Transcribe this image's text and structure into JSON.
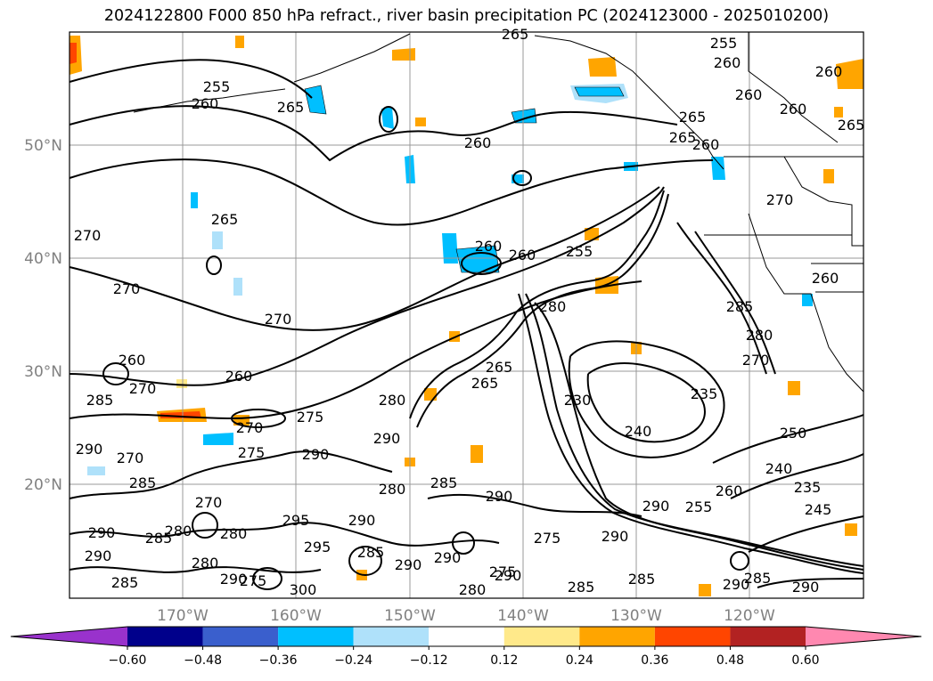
{
  "title": "2024122800 F000 850 hPa refract., river basin precipitation PC (2024123000 - 2025010200)",
  "lat_labels": [
    "50°N",
    "40°N",
    "30°N",
    "20°N"
  ],
  "lon_labels": [
    "170°W",
    "160°W",
    "150°W",
    "140°W",
    "130°W",
    "120°W"
  ],
  "colorbar": {
    "ticks": [
      "−0.60",
      "−0.48",
      "−0.36",
      "−0.24",
      "−0.12",
      "0.12",
      "0.24",
      "0.36",
      "0.48",
      "0.60"
    ],
    "colors": [
      "#9932cc",
      "#00008b",
      "#3a5fcd",
      "#00bfff",
      "#afe1fa",
      "#ffffff",
      "#ffe98a",
      "#ffa500",
      "#ff4500",
      "#b22222",
      "#ff88b0"
    ]
  },
  "contour_labels": [
    "265",
    "255",
    "260",
    "260",
    "255",
    "260",
    "265",
    "260",
    "265",
    "265",
    "260",
    "260",
    "265",
    "260",
    "270",
    "265",
    "270",
    "260",
    "260",
    "255",
    "270",
    "260",
    "280",
    "285",
    "280",
    "270",
    "260",
    "270",
    "270",
    "270",
    "260",
    "265",
    "275",
    "265",
    "280",
    "290",
    "285",
    "290",
    "230",
    "235",
    "240",
    "250",
    "240",
    "235",
    "245",
    "255",
    "260",
    "285",
    "290",
    "290",
    "275",
    "270",
    "280",
    "290",
    "280",
    "295",
    "295",
    "290",
    "280",
    "285",
    "280",
    "290",
    "290",
    "285",
    "290",
    "285",
    "290",
    "290",
    "290",
    "275",
    "280",
    "285",
    "285",
    "275",
    "290",
    "285",
    "290",
    "270",
    "290",
    "285",
    "300",
    "275"
  ],
  "colors": {
    "blue_fill": "#00bfff",
    "light_blue_fill": "#afe1fa",
    "orange_fill": "#ffa500",
    "yellow_fill": "#ffe98a",
    "grid": "#999999"
  }
}
